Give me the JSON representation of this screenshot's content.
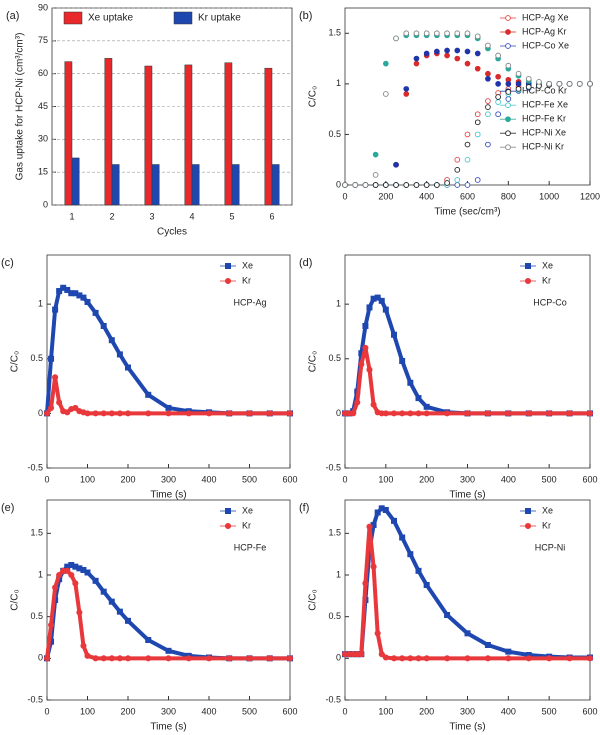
{
  "chart_data": [
    {
      "type": "bar",
      "panel_label": "(a)",
      "xlabel": "Cycles",
      "ylabel": "Gas uptake for HCP-Ni (cm³/cm³)",
      "categories": [
        "1",
        "2",
        "3",
        "4",
        "5",
        "6"
      ],
      "series": [
        {
          "name": "Xe uptake",
          "color": "#e8282b",
          "values": [
            65.5,
            67,
            63.5,
            64,
            65,
            62.5
          ]
        },
        {
          "name": "Kr uptake",
          "color": "#1f47b0",
          "values": [
            21.5,
            18.5,
            18.5,
            18.5,
            18.5,
            18.5
          ]
        }
      ],
      "ylim": [
        0,
        90
      ],
      "yticks": [
        0,
        15,
        30,
        45,
        60,
        75,
        90
      ],
      "grid": true,
      "legend": "top"
    },
    {
      "type": "scatter",
      "panel_label": "(b)",
      "xlabel": "Time (sec/cm³)",
      "ylabel": "C/C₀",
      "x": [
        0,
        50,
        100,
        150,
        200,
        250,
        300,
        350,
        400,
        450,
        500,
        550,
        600,
        650,
        700,
        750,
        800,
        850,
        900,
        950,
        1000,
        1050,
        1100,
        1150,
        1200
      ],
      "series": [
        {
          "name": "HCP-Ag Xe",
          "color": "#e84545",
          "filled": false,
          "values": [
            0,
            0,
            0,
            0,
            0,
            0,
            0,
            0,
            0,
            0,
            0.05,
            0.25,
            0.5,
            0.7,
            0.83,
            0.91,
            0.95,
            0.97,
            0.98,
            0.99,
            1,
            1,
            1,
            1,
            1
          ]
        },
        {
          "name": "HCP-Ag Kr",
          "color": "#d92b2b",
          "filled": true,
          "values": [
            0,
            0,
            0,
            0,
            0,
            0.2,
            0.9,
            1.2,
            1.28,
            1.3,
            1.28,
            1.25,
            1.2,
            1.15,
            1.1,
            1.07,
            1.04,
            1.02,
            1.01,
            1,
            1,
            1,
            1,
            1,
            1
          ]
        },
        {
          "name": "HCP-Co Xe",
          "color": "#3a4fc0",
          "filled": false,
          "values": [
            0,
            0,
            0,
            0,
            0,
            0,
            0,
            0,
            0,
            0,
            0,
            0,
            0,
            0.05,
            0.4,
            0.7,
            0.85,
            0.93,
            0.96,
            0.98,
            0.99,
            1,
            1,
            1,
            1
          ]
        },
        {
          "name": "HCP-Co Kr",
          "color": "#1f35a8",
          "filled": true,
          "values": [
            0,
            0,
            0,
            0,
            0,
            0.2,
            0.95,
            1.25,
            1.3,
            1.32,
            1.33,
            1.33,
            1.32,
            1.3,
            1.05,
            1,
            1,
            1,
            1,
            1,
            1,
            1,
            1,
            1,
            1
          ]
        },
        {
          "name": "HCP-Fe Xe",
          "color": "#45c8cc",
          "filled": false,
          "values": [
            0,
            0,
            0,
            0,
            0,
            0,
            0,
            0,
            0,
            0,
            0,
            0.05,
            0.25,
            0.5,
            0.7,
            0.82,
            0.9,
            0.94,
            0.97,
            0.98,
            0.99,
            1,
            1,
            1,
            1
          ]
        },
        {
          "name": "HCP-Fe Kr",
          "color": "#2aa89a",
          "filled": true,
          "values": [
            0,
            0,
            0,
            0.3,
            1.2,
            1.45,
            1.48,
            1.48,
            1.48,
            1.48,
            1.48,
            1.48,
            1.48,
            1.45,
            1.35,
            1.25,
            1.15,
            1.08,
            1.03,
            1.01,
            1,
            1,
            1,
            1,
            1
          ]
        },
        {
          "name": "HCP-Ni Xe",
          "color": "#222222",
          "filled": false,
          "values": [
            0,
            0,
            0,
            0,
            0,
            0,
            0,
            0,
            0,
            0,
            0.02,
            0.15,
            0.4,
            0.62,
            0.77,
            0.87,
            0.92,
            0.95,
            0.97,
            0.98,
            0.99,
            1,
            1,
            1,
            1
          ]
        },
        {
          "name": "HCP-Ni Kr",
          "color": "#888888",
          "filled": false,
          "values": [
            0,
            0,
            0,
            0.1,
            0.9,
            1.45,
            1.5,
            1.5,
            1.5,
            1.5,
            1.5,
            1.5,
            1.5,
            1.47,
            1.38,
            1.28,
            1.18,
            1.1,
            1.05,
            1.02,
            1,
            1,
            1,
            1,
            1
          ]
        }
      ],
      "xlim": [
        0,
        1200
      ],
      "xticks": [
        0,
        200,
        400,
        600,
        800,
        1000,
        1200
      ],
      "ylim": [
        0,
        1.75
      ],
      "yticks": [
        0,
        0.5,
        1,
        1.5
      ],
      "legend": "right"
    },
    {
      "type": "line",
      "panel_label": "(c)",
      "xlabel": "Time (s)",
      "ylabel": "C/C₀",
      "annotation": "HCP-Ag",
      "x": [
        0,
        10,
        20,
        30,
        40,
        50,
        60,
        70,
        80,
        90,
        100,
        120,
        140,
        160,
        180,
        200,
        250,
        300,
        350,
        400,
        450,
        500,
        550,
        600
      ],
      "series": [
        {
          "name": "Xe",
          "color": "#1f47b0",
          "marker": "square",
          "values": [
            0,
            0.5,
            0.95,
            1.12,
            1.15,
            1.13,
            1.1,
            1.1,
            1.08,
            1.06,
            1.02,
            0.92,
            0.8,
            0.67,
            0.54,
            0.42,
            0.17,
            0.05,
            0.02,
            0.01,
            0,
            0,
            0,
            0
          ]
        },
        {
          "name": "Kr",
          "color": "#e8383b",
          "marker": "circle",
          "values": [
            0,
            0.05,
            0.33,
            0.1,
            0.02,
            0.01,
            0.04,
            0.05,
            0.02,
            0.01,
            0,
            0,
            0,
            0,
            0,
            0,
            0,
            0,
            0,
            0,
            0,
            0,
            0,
            0
          ]
        }
      ],
      "xlim": [
        0,
        600
      ],
      "xticks": [
        0,
        100,
        200,
        300,
        400,
        500,
        600
      ],
      "ylim": [
        -0.5,
        1.45
      ],
      "yticks": [
        -0.5,
        0,
        0.5,
        1
      ],
      "legend": "upper right"
    },
    {
      "type": "line",
      "panel_label": "(d)",
      "xlabel": "Time (s)",
      "ylabel": "C/C₀",
      "annotation": "HCP-Co",
      "x": [
        0,
        10,
        20,
        30,
        40,
        50,
        60,
        70,
        80,
        90,
        100,
        120,
        140,
        160,
        180,
        200,
        250,
        300,
        350,
        400,
        450,
        500,
        550,
        600
      ],
      "series": [
        {
          "name": "Xe",
          "color": "#1f47b0",
          "marker": "square",
          "values": [
            0,
            0,
            0.02,
            0.2,
            0.55,
            0.8,
            0.97,
            1.05,
            1.06,
            1.03,
            0.95,
            0.72,
            0.48,
            0.28,
            0.14,
            0.06,
            0.01,
            0,
            0,
            0,
            0,
            0,
            0,
            0
          ]
        },
        {
          "name": "Kr",
          "color": "#e8383b",
          "marker": "circle",
          "values": [
            0,
            0,
            0,
            0.1,
            0.45,
            0.6,
            0.4,
            0.08,
            0.01,
            0,
            0,
            0,
            0,
            0,
            0,
            0,
            0,
            0,
            0,
            0,
            0,
            0,
            0,
            0
          ]
        }
      ],
      "xlim": [
        0,
        600
      ],
      "xticks": [
        0,
        100,
        200,
        300,
        400,
        500,
        600
      ],
      "ylim": [
        -0.5,
        1.45
      ],
      "yticks": [
        -0.5,
        0,
        0.5,
        1
      ],
      "legend": "upper right"
    },
    {
      "type": "line",
      "panel_label": "(e)",
      "xlabel": "Time (s)",
      "ylabel": "C/C₀",
      "annotation": "HCP-Fe",
      "x": [
        0,
        10,
        20,
        30,
        40,
        50,
        60,
        70,
        80,
        90,
        100,
        120,
        140,
        160,
        180,
        200,
        250,
        300,
        350,
        400,
        450,
        500,
        550,
        600
      ],
      "series": [
        {
          "name": "Xe",
          "color": "#1f47b0",
          "marker": "square",
          "values": [
            0,
            0.2,
            0.7,
            0.95,
            1.05,
            1.1,
            1.12,
            1.1,
            1.08,
            1.06,
            1.03,
            0.93,
            0.8,
            0.68,
            0.56,
            0.45,
            0.22,
            0.09,
            0.03,
            0.01,
            0,
            0,
            0,
            0
          ]
        },
        {
          "name": "Kr",
          "color": "#e8383b",
          "marker": "circle",
          "values": [
            0,
            0.4,
            0.85,
            1,
            1.05,
            1.05,
            1,
            0.9,
            0.55,
            0.15,
            0.03,
            0,
            0,
            0,
            0,
            0,
            0,
            0,
            0,
            0,
            0,
            0,
            0,
            0
          ]
        }
      ],
      "xlim": [
        0,
        600
      ],
      "xticks": [
        0,
        100,
        200,
        300,
        400,
        500,
        600
      ],
      "ylim": [
        -0.5,
        1.9
      ],
      "yticks": [
        -0.5,
        0,
        0.5,
        1,
        1.5
      ],
      "legend": "upper right"
    },
    {
      "type": "line",
      "panel_label": "(f)",
      "xlabel": "Time (s)",
      "ylabel": "C/C₀",
      "annotation": "HCP-Ni",
      "x": [
        0,
        10,
        20,
        30,
        40,
        50,
        60,
        70,
        80,
        90,
        100,
        120,
        140,
        160,
        180,
        200,
        250,
        300,
        350,
        400,
        450,
        500,
        550,
        600
      ],
      "series": [
        {
          "name": "Xe",
          "color": "#1f47b0",
          "marker": "square",
          "values": [
            0.05,
            0.05,
            0.05,
            0.05,
            0.05,
            0.7,
            1.3,
            1.6,
            1.75,
            1.8,
            1.78,
            1.65,
            1.45,
            1.25,
            1.05,
            0.88,
            0.52,
            0.3,
            0.16,
            0.08,
            0.04,
            0.02,
            0.01,
            0.01
          ]
        },
        {
          "name": "Kr",
          "color": "#e8383b",
          "marker": "circle",
          "values": [
            0.05,
            0.05,
            0.05,
            0.05,
            0.05,
            0.9,
            1.58,
            1.1,
            0.3,
            0.05,
            0.01,
            0,
            0,
            0,
            0,
            0,
            0,
            0,
            0,
            0,
            0,
            0,
            0,
            0
          ]
        }
      ],
      "xlim": [
        0,
        600
      ],
      "xticks": [
        0,
        100,
        200,
        300,
        400,
        500,
        600
      ],
      "ylim": [
        -0.5,
        1.9
      ],
      "yticks": [
        -0.5,
        0,
        0.5,
        1,
        1.5
      ],
      "legend": "upper right"
    }
  ]
}
